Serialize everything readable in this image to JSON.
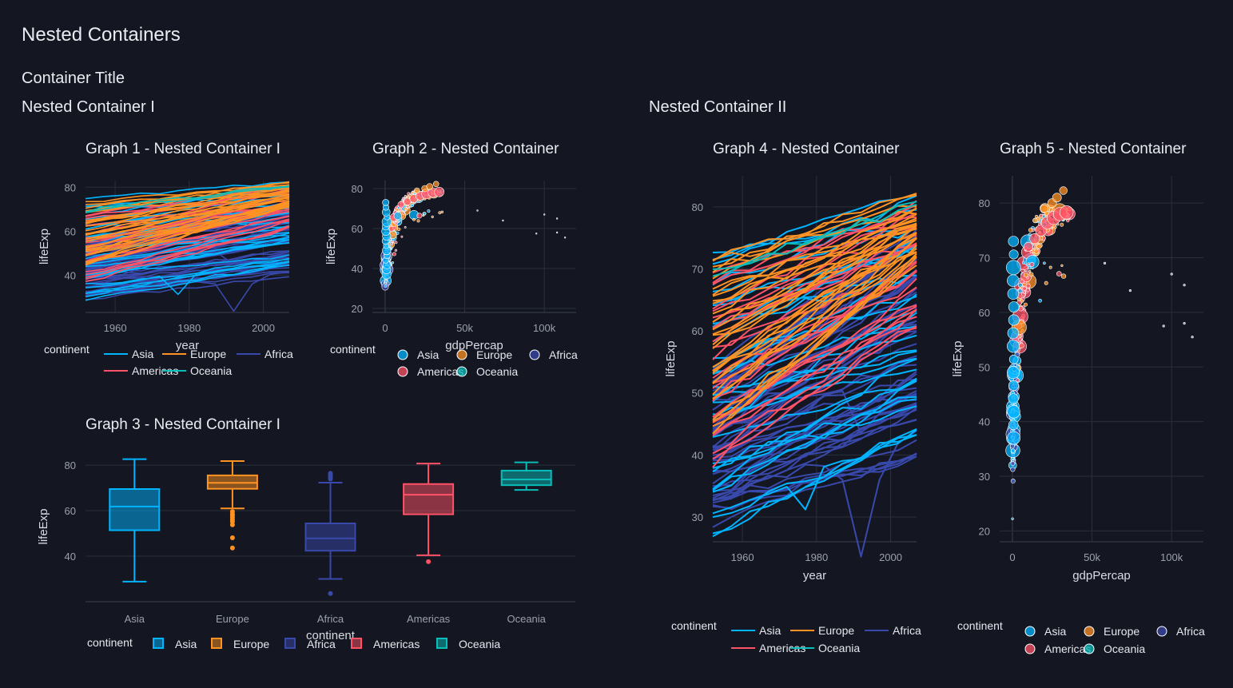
{
  "page": {
    "title": "Nested Containers"
  },
  "container": {
    "title": "Container Title",
    "nested_1": {
      "title": "Nested Container I"
    },
    "nested_2": {
      "title": "Nested Container II"
    }
  },
  "graphs": {
    "g1": {
      "title": "Graph 1 - Nested Container I"
    },
    "g2": {
      "title": "Graph 2 - Nested Container"
    },
    "g3": {
      "title": "Graph 3 - Nested Container I"
    },
    "g4": {
      "title": "Graph 4 - Nested Container"
    },
    "g5": {
      "title": "Graph 5 - Nested Container"
    }
  },
  "legend": {
    "title": "continent",
    "items": [
      "Asia",
      "Europe",
      "Africa",
      "Americas",
      "Oceania"
    ]
  },
  "colors": {
    "Asia": "#00b4ff",
    "Europe": "#ff9222",
    "Africa": "#3949ab",
    "Americas": "#ff5267",
    "Oceania": "#08bdba",
    "background": "#141721",
    "grid": "#2a2f3b"
  },
  "chart_data": [
    {
      "id": "g1",
      "type": "line",
      "xlabel": "year",
      "ylabel": "lifeExp",
      "xlim": [
        1952,
        2007
      ],
      "ylim": [
        23,
        83
      ],
      "xticks": [
        1960,
        1980,
        2000
      ],
      "yticks": [
        40,
        60,
        80
      ],
      "series": [
        {
          "name": "Asia",
          "start": [
            28.8,
            72
          ],
          "end": [
            43.8,
            82.6
          ],
          "dips": [
            [
              1977,
              31.2
            ]
          ]
        },
        {
          "name": "Europe",
          "start": [
            43.6,
            72.5
          ],
          "end": [
            71,
            81.8
          ],
          "dips": []
        },
        {
          "name": "Africa",
          "start": [
            30,
            52.7
          ],
          "end": [
            39.6,
            76.4
          ],
          "dips": [
            [
              1992,
              23.6
            ]
          ]
        },
        {
          "name": "Americas",
          "start": [
            37.6,
            68.8
          ],
          "end": [
            60.9,
            80.7
          ],
          "dips": []
        },
        {
          "name": "Oceania",
          "start": [
            69.1,
            69.4
          ],
          "end": [
            80.2,
            81.2
          ],
          "dips": []
        }
      ]
    },
    {
      "id": "g2",
      "type": "scatter",
      "xlabel": "gdpPercap",
      "ylabel": "lifeExp",
      "xlim": [
        -8000,
        120000
      ],
      "ylim": [
        18,
        84
      ],
      "xticks": [
        0,
        50000,
        100000
      ],
      "xticklabels": [
        "0",
        "50k",
        "100k"
      ],
      "yticks": [
        20,
        40,
        60,
        80
      ]
    },
    {
      "id": "g3",
      "type": "box",
      "xlabel": "continent",
      "ylabel": "lifeExp",
      "ylim": [
        20,
        86
      ],
      "yticks": [
        40,
        60,
        80
      ],
      "categories": [
        "Asia",
        "Europe",
        "Africa",
        "Americas",
        "Oceania"
      ],
      "boxes": [
        {
          "name": "Asia",
          "min": 28.8,
          "q1": 51.4,
          "median": 61.8,
          "q3": 69.5,
          "max": 82.6,
          "outliers": []
        },
        {
          "name": "Europe",
          "min": 61.0,
          "q1": 69.6,
          "median": 72.2,
          "q3": 75.5,
          "max": 81.8,
          "outliers": [
            59.6,
            58.5,
            57.9,
            57.0,
            56.0,
            55.2,
            53.8,
            48.1,
            43.6
          ]
        },
        {
          "name": "Africa",
          "min": 30.0,
          "q1": 42.4,
          "median": 47.8,
          "q3": 54.4,
          "max": 72.3,
          "outliers": [
            76.4,
            75.7,
            74.8,
            74.1,
            73.9,
            23.6
          ]
        },
        {
          "name": "Americas",
          "min": 40.4,
          "q1": 58.4,
          "median": 67.0,
          "q3": 71.7,
          "max": 80.7,
          "outliers": [
            37.6
          ]
        },
        {
          "name": "Oceania",
          "min": 69.1,
          "q1": 71.2,
          "median": 73.7,
          "q3": 77.6,
          "max": 81.2,
          "outliers": []
        }
      ]
    },
    {
      "id": "g4",
      "type": "line",
      "xlabel": "year",
      "ylabel": "lifeExp",
      "xlim": [
        1952,
        2007
      ],
      "ylim": [
        26,
        85
      ],
      "xticks": [
        1960,
        1980,
        2000
      ],
      "yticks": [
        30,
        40,
        50,
        60,
        70,
        80
      ]
    },
    {
      "id": "g5",
      "type": "scatter",
      "xlabel": "gdpPercap",
      "ylabel": "lifeExp",
      "xlim": [
        -8000,
        120000
      ],
      "ylim": [
        18,
        85
      ],
      "xticks": [
        0,
        50000,
        100000
      ],
      "xticklabels": [
        "0",
        "50k",
        "100k"
      ],
      "yticks": [
        20,
        30,
        40,
        50,
        60,
        70,
        80
      ]
    }
  ]
}
